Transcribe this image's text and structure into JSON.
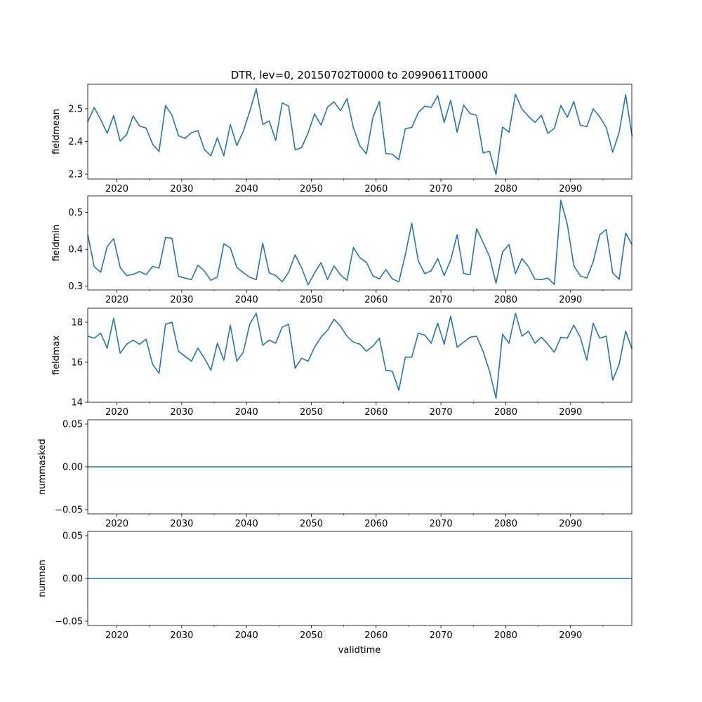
{
  "chart_data": {
    "type": "line",
    "title": "DTR, lev=0, 20150702T0000 to 20990611T0000",
    "xlabel": "validtime",
    "x_start_year": 2015.5,
    "x_step_years": 1,
    "xlim": [
      2015.5,
      2099.45
    ],
    "x_ticks_major": [
      2020,
      2030,
      2040,
      2050,
      2060,
      2070,
      2080,
      2090
    ],
    "x_tick_labels": [
      "2020",
      "2030",
      "2040",
      "2050",
      "2060",
      "2070",
      "2080",
      "2090"
    ],
    "x_ticks_minor": [
      2025,
      2035,
      2045,
      2055,
      2065,
      2075,
      2085,
      2095
    ],
    "line_color": "#1f77b4",
    "panels": [
      {
        "ylabel": "fieldmean",
        "ylim": [
          2.285,
          2.575
        ],
        "y_ticks": [
          2.3,
          2.4,
          2.5
        ],
        "y_tick_labels": [
          "2.3",
          "2.4",
          "2.5"
        ],
        "values": [
          2.46,
          2.504,
          2.467,
          2.425,
          2.479,
          2.401,
          2.421,
          2.478,
          2.447,
          2.441,
          2.392,
          2.369,
          2.51,
          2.48,
          2.418,
          2.409,
          2.427,
          2.433,
          2.375,
          2.356,
          2.411,
          2.356,
          2.452,
          2.387,
          2.431,
          2.492,
          2.561,
          2.452,
          2.463,
          2.403,
          2.518,
          2.508,
          2.374,
          2.381,
          2.426,
          2.484,
          2.45,
          2.505,
          2.521,
          2.494,
          2.531,
          2.441,
          2.386,
          2.362,
          2.473,
          2.522,
          2.363,
          2.361,
          2.344,
          2.439,
          2.443,
          2.488,
          2.508,
          2.504,
          2.54,
          2.458,
          2.526,
          2.428,
          2.511,
          2.485,
          2.48,
          2.365,
          2.37,
          2.299,
          2.444,
          2.428,
          2.544,
          2.499,
          2.477,
          2.458,
          2.48,
          2.425,
          2.44,
          2.51,
          2.474,
          2.522,
          2.45,
          2.445,
          2.5,
          2.475,
          2.443,
          2.367,
          2.428,
          2.543,
          2.415
        ]
      },
      {
        "ylabel": "fieldmin",
        "ylim": [
          0.29,
          0.545
        ],
        "y_ticks": [
          0.3,
          0.4,
          0.5
        ],
        "y_tick_labels": [
          "0.3",
          "0.4",
          "0.5"
        ],
        "values": [
          0.44,
          0.353,
          0.338,
          0.408,
          0.429,
          0.351,
          0.329,
          0.332,
          0.34,
          0.331,
          0.354,
          0.349,
          0.432,
          0.43,
          0.327,
          0.322,
          0.318,
          0.357,
          0.341,
          0.316,
          0.325,
          0.415,
          0.404,
          0.351,
          0.337,
          0.324,
          0.318,
          0.417,
          0.336,
          0.329,
          0.312,
          0.338,
          0.385,
          0.35,
          0.304,
          0.336,
          0.364,
          0.318,
          0.355,
          0.331,
          0.316,
          0.405,
          0.377,
          0.365,
          0.328,
          0.32,
          0.345,
          0.32,
          0.312,
          0.385,
          0.471,
          0.369,
          0.334,
          0.342,
          0.375,
          0.329,
          0.371,
          0.44,
          0.335,
          0.331,
          0.456,
          0.419,
          0.38,
          0.308,
          0.393,
          0.413,
          0.334,
          0.375,
          0.353,
          0.319,
          0.318,
          0.322,
          0.305,
          0.533,
          0.468,
          0.356,
          0.328,
          0.322,
          0.367,
          0.439,
          0.454,
          0.336,
          0.319,
          0.444,
          0.412
        ]
      },
      {
        "ylabel": "fieldmax",
        "ylim": [
          14.0,
          18.7
        ],
        "y_ticks": [
          14,
          16,
          18
        ],
        "y_tick_labels": [
          "14",
          "16",
          "18"
        ],
        "values": [
          17.3,
          17.2,
          17.45,
          16.7,
          18.2,
          16.45,
          16.9,
          17.1,
          16.9,
          17.15,
          15.9,
          15.45,
          17.9,
          18.0,
          16.55,
          16.3,
          16.05,
          16.7,
          16.2,
          15.6,
          16.95,
          16.1,
          17.85,
          16.05,
          16.5,
          17.9,
          18.45,
          16.85,
          17.1,
          16.95,
          17.75,
          17.9,
          15.7,
          16.2,
          16.05,
          16.75,
          17.25,
          17.6,
          18.15,
          17.8,
          17.3,
          17.0,
          16.9,
          16.55,
          16.8,
          17.2,
          15.6,
          15.55,
          14.6,
          16.25,
          16.25,
          17.45,
          17.35,
          16.95,
          17.95,
          16.9,
          18.3,
          16.75,
          17.0,
          17.25,
          17.3,
          16.55,
          15.55,
          14.2,
          17.4,
          16.95,
          18.45,
          17.3,
          17.55,
          16.95,
          17.25,
          16.9,
          16.5,
          17.25,
          17.2,
          17.85,
          17.25,
          16.1,
          17.95,
          17.2,
          17.3,
          15.1,
          15.9,
          17.55,
          16.65
        ]
      },
      {
        "ylabel": "nummasked",
        "ylim": [
          -0.055,
          0.055
        ],
        "y_ticks": [
          -0.05,
          0.0,
          0.05
        ],
        "y_tick_labels": [
          "−0.05",
          "0.00",
          "0.05"
        ],
        "constant_value": 0
      },
      {
        "ylabel": "numnan",
        "ylim": [
          -0.055,
          0.055
        ],
        "y_ticks": [
          -0.05,
          0.0,
          0.05
        ],
        "y_tick_labels": [
          "−0.05",
          "0.00",
          "0.05"
        ],
        "constant_value": 0
      }
    ]
  }
}
